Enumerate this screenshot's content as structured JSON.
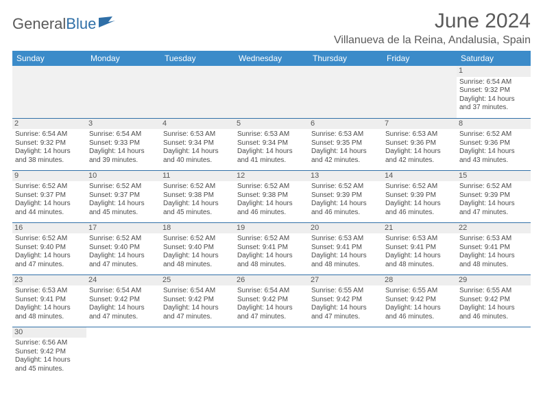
{
  "logo": {
    "text1": "General",
    "text2": "Blue"
  },
  "title": "June 2024",
  "location": "Villanueva de la Reina, Andalusia, Spain",
  "colors": {
    "header_bg": "#3b8bc9",
    "header_text": "#ffffff",
    "border": "#2f6fa7",
    "daynum_bg": "#eeeeee",
    "empty_bg": "#f1f1f1",
    "text": "#4a4a4a",
    "title_text": "#5a5a5a"
  },
  "day_headers": [
    "Sunday",
    "Monday",
    "Tuesday",
    "Wednesday",
    "Thursday",
    "Friday",
    "Saturday"
  ],
  "weeks": [
    [
      null,
      null,
      null,
      null,
      null,
      null,
      {
        "n": "1",
        "sr": "6:54 AM",
        "ss": "9:32 PM",
        "dl": "14 hours and 37 minutes."
      }
    ],
    [
      {
        "n": "2",
        "sr": "6:54 AM",
        "ss": "9:32 PM",
        "dl": "14 hours and 38 minutes."
      },
      {
        "n": "3",
        "sr": "6:54 AM",
        "ss": "9:33 PM",
        "dl": "14 hours and 39 minutes."
      },
      {
        "n": "4",
        "sr": "6:53 AM",
        "ss": "9:34 PM",
        "dl": "14 hours and 40 minutes."
      },
      {
        "n": "5",
        "sr": "6:53 AM",
        "ss": "9:34 PM",
        "dl": "14 hours and 41 minutes."
      },
      {
        "n": "6",
        "sr": "6:53 AM",
        "ss": "9:35 PM",
        "dl": "14 hours and 42 minutes."
      },
      {
        "n": "7",
        "sr": "6:53 AM",
        "ss": "9:36 PM",
        "dl": "14 hours and 42 minutes."
      },
      {
        "n": "8",
        "sr": "6:52 AM",
        "ss": "9:36 PM",
        "dl": "14 hours and 43 minutes."
      }
    ],
    [
      {
        "n": "9",
        "sr": "6:52 AM",
        "ss": "9:37 PM",
        "dl": "14 hours and 44 minutes."
      },
      {
        "n": "10",
        "sr": "6:52 AM",
        "ss": "9:37 PM",
        "dl": "14 hours and 45 minutes."
      },
      {
        "n": "11",
        "sr": "6:52 AM",
        "ss": "9:38 PM",
        "dl": "14 hours and 45 minutes."
      },
      {
        "n": "12",
        "sr": "6:52 AM",
        "ss": "9:38 PM",
        "dl": "14 hours and 46 minutes."
      },
      {
        "n": "13",
        "sr": "6:52 AM",
        "ss": "9:39 PM",
        "dl": "14 hours and 46 minutes."
      },
      {
        "n": "14",
        "sr": "6:52 AM",
        "ss": "9:39 PM",
        "dl": "14 hours and 46 minutes."
      },
      {
        "n": "15",
        "sr": "6:52 AM",
        "ss": "9:39 PM",
        "dl": "14 hours and 47 minutes."
      }
    ],
    [
      {
        "n": "16",
        "sr": "6:52 AM",
        "ss": "9:40 PM",
        "dl": "14 hours and 47 minutes."
      },
      {
        "n": "17",
        "sr": "6:52 AM",
        "ss": "9:40 PM",
        "dl": "14 hours and 47 minutes."
      },
      {
        "n": "18",
        "sr": "6:52 AM",
        "ss": "9:40 PM",
        "dl": "14 hours and 48 minutes."
      },
      {
        "n": "19",
        "sr": "6:52 AM",
        "ss": "9:41 PM",
        "dl": "14 hours and 48 minutes."
      },
      {
        "n": "20",
        "sr": "6:53 AM",
        "ss": "9:41 PM",
        "dl": "14 hours and 48 minutes."
      },
      {
        "n": "21",
        "sr": "6:53 AM",
        "ss": "9:41 PM",
        "dl": "14 hours and 48 minutes."
      },
      {
        "n": "22",
        "sr": "6:53 AM",
        "ss": "9:41 PM",
        "dl": "14 hours and 48 minutes."
      }
    ],
    [
      {
        "n": "23",
        "sr": "6:53 AM",
        "ss": "9:41 PM",
        "dl": "14 hours and 48 minutes."
      },
      {
        "n": "24",
        "sr": "6:54 AM",
        "ss": "9:42 PM",
        "dl": "14 hours and 47 minutes."
      },
      {
        "n": "25",
        "sr": "6:54 AM",
        "ss": "9:42 PM",
        "dl": "14 hours and 47 minutes."
      },
      {
        "n": "26",
        "sr": "6:54 AM",
        "ss": "9:42 PM",
        "dl": "14 hours and 47 minutes."
      },
      {
        "n": "27",
        "sr": "6:55 AM",
        "ss": "9:42 PM",
        "dl": "14 hours and 47 minutes."
      },
      {
        "n": "28",
        "sr": "6:55 AM",
        "ss": "9:42 PM",
        "dl": "14 hours and 46 minutes."
      },
      {
        "n": "29",
        "sr": "6:55 AM",
        "ss": "9:42 PM",
        "dl": "14 hours and 46 minutes."
      }
    ],
    [
      {
        "n": "30",
        "sr": "6:56 AM",
        "ss": "9:42 PM",
        "dl": "14 hours and 45 minutes."
      },
      null,
      null,
      null,
      null,
      null,
      null
    ]
  ],
  "labels": {
    "sunrise": "Sunrise: ",
    "sunset": "Sunset: ",
    "daylight": "Daylight: "
  }
}
